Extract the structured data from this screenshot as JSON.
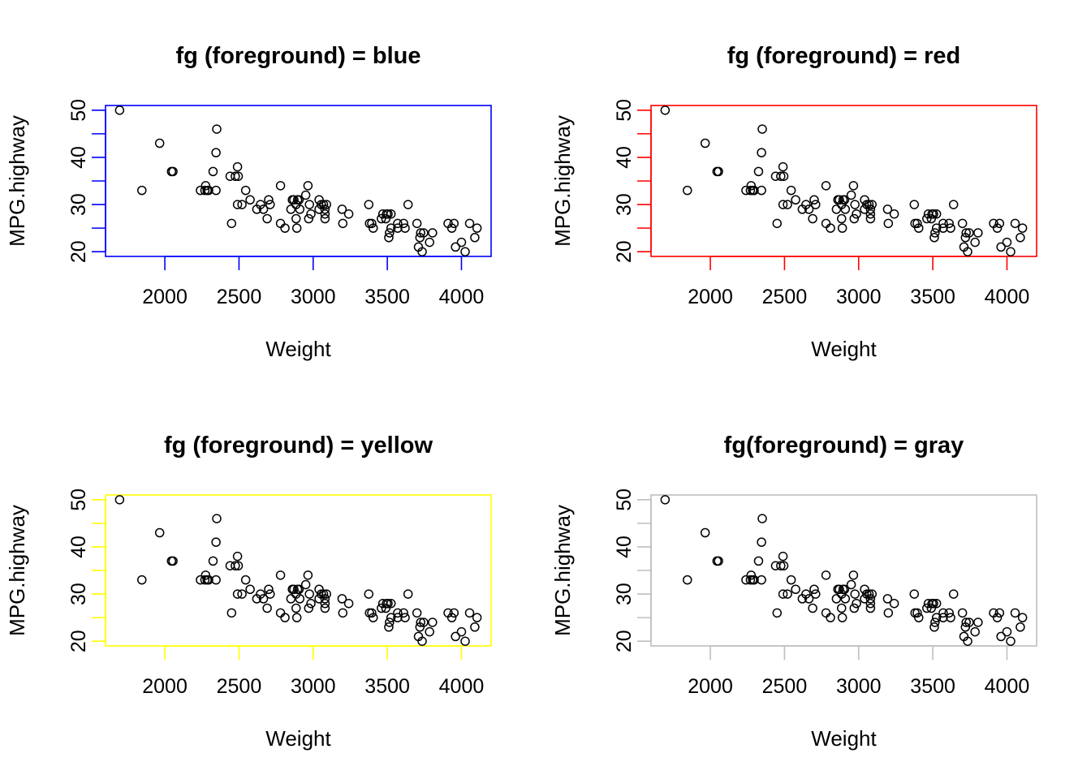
{
  "chart_data": [
    {
      "type": "scatter",
      "title": "fg (foreground) = blue",
      "fg_color": "#0000ff",
      "xlabel": "Weight",
      "ylabel": "MPG.highway",
      "xlim": [
        1600,
        4200
      ],
      "ylim": [
        19,
        51
      ],
      "xticks": [
        2000,
        2500,
        3000,
        3500,
        4000
      ],
      "yticks": [
        20,
        30,
        40,
        50
      ],
      "grid": false,
      "point_style": "open-circle",
      "point_dataset": "mpg_weight"
    },
    {
      "type": "scatter",
      "title": "fg (foreground) = red",
      "fg_color": "#ff0000",
      "xlabel": "Weight",
      "ylabel": "MPG.highway",
      "xlim": [
        1600,
        4200
      ],
      "ylim": [
        19,
        51
      ],
      "xticks": [
        2000,
        2500,
        3000,
        3500,
        4000
      ],
      "yticks": [
        20,
        30,
        40,
        50
      ],
      "grid": false,
      "point_style": "open-circle",
      "point_dataset": "mpg_weight"
    },
    {
      "type": "scatter",
      "title": "fg (foreground) = yellow",
      "fg_color": "#ffff00",
      "xlabel": "Weight",
      "ylabel": "MPG.highway",
      "xlim": [
        1600,
        4200
      ],
      "ylim": [
        19,
        51
      ],
      "xticks": [
        2000,
        2500,
        3000,
        3500,
        4000
      ],
      "yticks": [
        20,
        30,
        40,
        50
      ],
      "grid": false,
      "point_style": "open-circle",
      "point_dataset": "mpg_weight"
    },
    {
      "type": "scatter",
      "title": "fg(foreground) = gray",
      "fg_color": "#bebebe",
      "xlabel": "Weight",
      "ylabel": "MPG.highway",
      "xlim": [
        1600,
        4200
      ],
      "ylim": [
        19,
        51
      ],
      "xticks": [
        2000,
        2500,
        3000,
        3500,
        4000
      ],
      "yticks": [
        20,
        30,
        40,
        50
      ],
      "grid": false,
      "point_style": "open-circle",
      "point_dataset": "mpg_weight"
    }
  ],
  "datasets": {
    "mpg_weight": [
      [
        1695,
        50
      ],
      [
        1845,
        33
      ],
      [
        1965,
        43
      ],
      [
        2045,
        37
      ],
      [
        2055,
        37
      ],
      [
        2240,
        33
      ],
      [
        2270,
        33
      ],
      [
        2275,
        34
      ],
      [
        2285,
        33
      ],
      [
        2295,
        33
      ],
      [
        2325,
        37
      ],
      [
        2345,
        33
      ],
      [
        2345,
        41
      ],
      [
        2350,
        46
      ],
      [
        2440,
        36
      ],
      [
        2450,
        26
      ],
      [
        2475,
        36
      ],
      [
        2490,
        38
      ],
      [
        2490,
        30
      ],
      [
        2495,
        36
      ],
      [
        2520,
        30
      ],
      [
        2545,
        33
      ],
      [
        2575,
        31
      ],
      [
        2620,
        29
      ],
      [
        2645,
        30
      ],
      [
        2665,
        29
      ],
      [
        2690,
        27
      ],
      [
        2700,
        31
      ],
      [
        2710,
        30
      ],
      [
        2780,
        34
      ],
      [
        2780,
        26
      ],
      [
        2810,
        25
      ],
      [
        2850,
        29
      ],
      [
        2860,
        31
      ],
      [
        2870,
        31
      ],
      [
        2885,
        27
      ],
      [
        2885,
        30
      ],
      [
        2890,
        25
      ],
      [
        2895,
        31
      ],
      [
        2905,
        31
      ],
      [
        2910,
        29
      ],
      [
        2950,
        32
      ],
      [
        2965,
        34
      ],
      [
        2970,
        27
      ],
      [
        2975,
        30
      ],
      [
        2985,
        28
      ],
      [
        3040,
        29
      ],
      [
        3040,
        31
      ],
      [
        3055,
        30
      ],
      [
        3070,
        30
      ],
      [
        3080,
        27
      ],
      [
        3080,
        29
      ],
      [
        3080,
        28
      ],
      [
        3090,
        30
      ],
      [
        3195,
        29
      ],
      [
        3200,
        26
      ],
      [
        3240,
        28
      ],
      [
        3375,
        30
      ],
      [
        3380,
        26
      ],
      [
        3395,
        26
      ],
      [
        3405,
        25
      ],
      [
        3460,
        27
      ],
      [
        3470,
        28
      ],
      [
        3490,
        27
      ],
      [
        3495,
        28
      ],
      [
        3505,
        28
      ],
      [
        3510,
        23
      ],
      [
        3515,
        24
      ],
      [
        3525,
        28
      ],
      [
        3525,
        25
      ],
      [
        3570,
        26
      ],
      [
        3570,
        25
      ],
      [
        3610,
        26
      ],
      [
        3620,
        25
      ],
      [
        3640,
        30
      ],
      [
        3700,
        26
      ],
      [
        3710,
        21
      ],
      [
        3720,
        23
      ],
      [
        3725,
        24
      ],
      [
        3735,
        20
      ],
      [
        3745,
        24
      ],
      [
        3785,
        22
      ],
      [
        3805,
        24
      ],
      [
        3910,
        26
      ],
      [
        3935,
        25
      ],
      [
        3950,
        26
      ],
      [
        3960,
        21
      ],
      [
        4000,
        22
      ],
      [
        4025,
        20
      ],
      [
        4055,
        26
      ],
      [
        4090,
        23
      ],
      [
        4105,
        25
      ]
    ]
  }
}
